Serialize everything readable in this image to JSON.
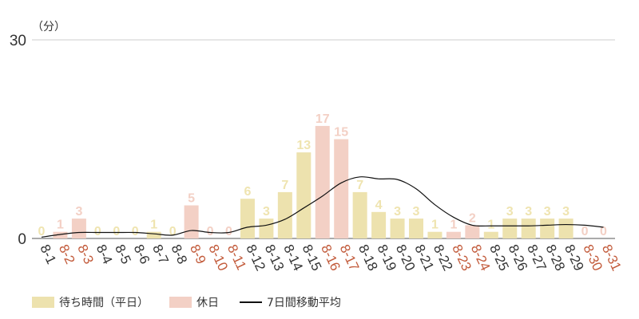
{
  "chart_data": {
    "type": "bar",
    "unit_label": "（分）",
    "ylim": [
      0,
      30
    ],
    "y_ticks": [
      "0",
      "30"
    ],
    "categories": [
      "8-1",
      "8-2",
      "8-3",
      "8-4",
      "8-5",
      "8-6",
      "8-7",
      "8-8",
      "8-9",
      "8-10",
      "8-11",
      "8-12",
      "8-13",
      "8-14",
      "8-15",
      "8-16",
      "8-17",
      "8-18",
      "8-19",
      "8-20",
      "8-21",
      "8-22",
      "8-23",
      "8-24",
      "8-25",
      "8-26",
      "8-27",
      "8-28",
      "8-29",
      "8-30",
      "8-31"
    ],
    "values": [
      0,
      1,
      3,
      0,
      0,
      0,
      1,
      0,
      5,
      0,
      0,
      6,
      3,
      7,
      13,
      17,
      15,
      7,
      4,
      3,
      3,
      1,
      1,
      2,
      1,
      3,
      3,
      3,
      3,
      0,
      0
    ],
    "holiday": [
      false,
      true,
      true,
      false,
      false,
      false,
      false,
      false,
      true,
      true,
      true,
      false,
      false,
      false,
      false,
      true,
      true,
      false,
      false,
      false,
      false,
      false,
      true,
      true,
      false,
      false,
      false,
      false,
      false,
      true,
      true
    ],
    "moving_average": [
      0.2,
      0.6,
      0.9,
      0.9,
      0.9,
      0.9,
      0.7,
      0.5,
      1.2,
      0.9,
      0.9,
      1.7,
      2.0,
      2.9,
      4.6,
      6.4,
      8.4,
      9.3,
      9.0,
      8.9,
      7.5,
      5.1,
      3.2,
      2.0,
      1.9,
      1.9,
      1.9,
      2.0,
      2.1,
      2.0,
      1.7
    ],
    "series": [
      {
        "name": "待ち時間（平日）",
        "color": "#ede2ae"
      },
      {
        "name": "休日",
        "color": "#f3d0c5"
      },
      {
        "name": "7日間移動平均",
        "color": "#111111"
      }
    ],
    "label_colors": {
      "weekday": "#efe4b0",
      "holiday": "#f3d0c5"
    },
    "tick_colors": {
      "weekday": "#333333",
      "holiday": "#c25a3a"
    },
    "grid": true,
    "legend_position": "bottom-left"
  }
}
